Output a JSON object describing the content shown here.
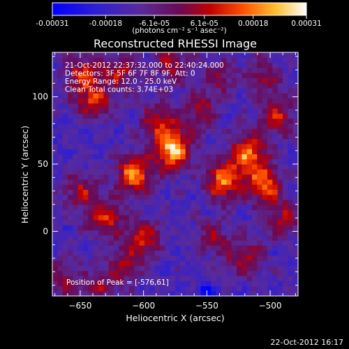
{
  "chart_data": {
    "type": "heatmap",
    "title": "Reconstructed RHESSI Image",
    "xlabel": "Heliocentric X (arcsec)",
    "ylabel": "Heliocentric Y (arcsec)",
    "xlim": [
      -672,
      -478
    ],
    "ylim": [
      -48,
      133
    ],
    "xticks": [
      -650,
      -600,
      -550,
      -500
    ],
    "yticks": [
      0,
      50,
      100
    ],
    "colorbar": {
      "colormap": "blue-purple-red-yellow-white",
      "range": [
        -0.00031,
        0.00031
      ],
      "ticks": [
        "-0.00031",
        "-0.00018",
        "-6.1e-05",
        "6.1e-05",
        "0.00018",
        "0.00031"
      ],
      "tick_values": [
        -0.00031,
        -0.00018,
        -6.1e-05,
        6.1e-05,
        0.00018,
        0.00031
      ]
    },
    "annotations": [
      "21-Oct-2012 22:37:32.000 to 22:40:24.000",
      "Detectors: 3F 5F 6F 7F 8F 9F, Att: 0",
      "Energy Range: 12.0 - 25.0 keV",
      "Clean     Total counts: 3.74E+03"
    ],
    "peak_label": "Position of Peak = [-576,61]",
    "peak_position": [
      -576,
      61
    ],
    "blobs": [
      {
        "x": -577,
        "y": 61,
        "amp": 1.0
      },
      {
        "x": -607,
        "y": 43,
        "amp": 0.85
      },
      {
        "x": -588,
        "y": 82,
        "amp": 0.55
      },
      {
        "x": -640,
        "y": 97,
        "amp": 0.6
      },
      {
        "x": -648,
        "y": 118,
        "amp": 0.55
      },
      {
        "x": -618,
        "y": 120,
        "amp": 0.5
      },
      {
        "x": -578,
        "y": 124,
        "amp": 0.45
      },
      {
        "x": -630,
        "y": 10,
        "amp": 0.6
      },
      {
        "x": -650,
        "y": 30,
        "amp": 0.45
      },
      {
        "x": -600,
        "y": -5,
        "amp": 0.55
      },
      {
        "x": -615,
        "y": -25,
        "amp": 0.4
      },
      {
        "x": -537,
        "y": 38,
        "amp": 0.8
      },
      {
        "x": -517,
        "y": 58,
        "amp": 0.8
      },
      {
        "x": -505,
        "y": 35,
        "amp": 0.7
      },
      {
        "x": -495,
        "y": 85,
        "amp": 0.55
      },
      {
        "x": -555,
        "y": 90,
        "amp": 0.45
      },
      {
        "x": -540,
        "y": 115,
        "amp": 0.35
      },
      {
        "x": -505,
        "y": 115,
        "amp": 0.4
      },
      {
        "x": -490,
        "y": 10,
        "amp": 0.45
      },
      {
        "x": -520,
        "y": -20,
        "amp": 0.5
      },
      {
        "x": -545,
        "y": -5,
        "amp": 0.35
      },
      {
        "x": -665,
        "y": -35,
        "amp": 0.4
      },
      {
        "x": -635,
        "y": -42,
        "amp": 0.35
      }
    ],
    "minimum": {
      "x": -550,
      "y": -45
    }
  },
  "colorbar_unit": "(photons cm⁻² s⁻¹ asec⁻²)",
  "footer_date": "22-Oct-2012 16:17"
}
